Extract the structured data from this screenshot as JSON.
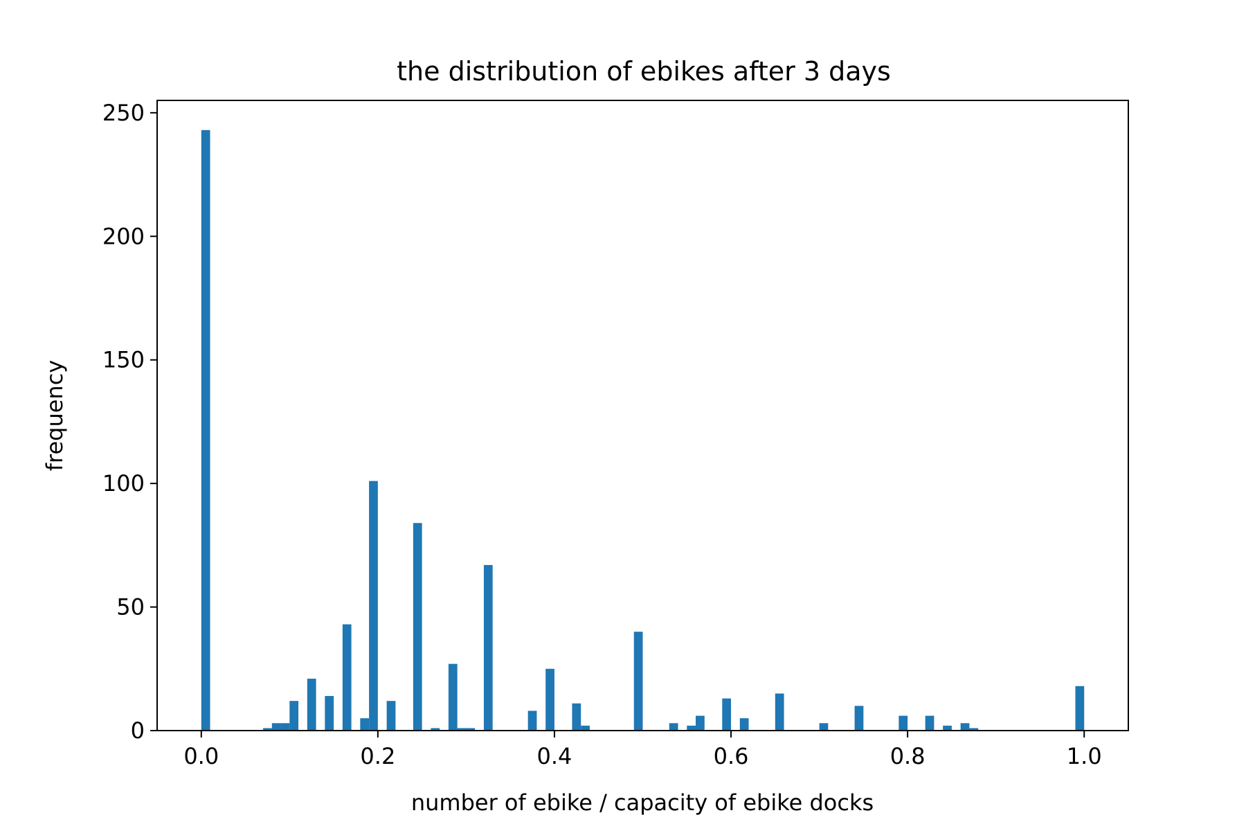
{
  "chart_data": {
    "type": "bar",
    "title": "the distribution of ebikes after 3 days",
    "xlabel": "number of ebike / capacity of ebike docks",
    "ylabel": "frequency",
    "xlim": [
      -0.05,
      1.05
    ],
    "ylim": [
      0,
      255
    ],
    "xticks": [
      {
        "value": 0.0,
        "label": "0.0"
      },
      {
        "value": 0.2,
        "label": "0.2"
      },
      {
        "value": 0.4,
        "label": "0.4"
      },
      {
        "value": 0.6,
        "label": "0.6"
      },
      {
        "value": 0.8,
        "label": "0.8"
      },
      {
        "value": 1.0,
        "label": "1.0"
      }
    ],
    "yticks": [
      {
        "value": 0,
        "label": "0"
      },
      {
        "value": 50,
        "label": "50"
      },
      {
        "value": 100,
        "label": "100"
      },
      {
        "value": 150,
        "label": "150"
      },
      {
        "value": 200,
        "label": "200"
      },
      {
        "value": 250,
        "label": "250"
      }
    ],
    "bin_width": 0.01,
    "bars": [
      {
        "x": 0.0,
        "y": 243
      },
      {
        "x": 0.07,
        "y": 1
      },
      {
        "x": 0.08,
        "y": 3
      },
      {
        "x": 0.09,
        "y": 3
      },
      {
        "x": 0.1,
        "y": 12
      },
      {
        "x": 0.12,
        "y": 21
      },
      {
        "x": 0.14,
        "y": 14
      },
      {
        "x": 0.16,
        "y": 43
      },
      {
        "x": 0.18,
        "y": 5
      },
      {
        "x": 0.19,
        "y": 101
      },
      {
        "x": 0.21,
        "y": 12
      },
      {
        "x": 0.24,
        "y": 84
      },
      {
        "x": 0.26,
        "y": 1
      },
      {
        "x": 0.28,
        "y": 27
      },
      {
        "x": 0.29,
        "y": 1
      },
      {
        "x": 0.3,
        "y": 1
      },
      {
        "x": 0.32,
        "y": 67
      },
      {
        "x": 0.37,
        "y": 8
      },
      {
        "x": 0.39,
        "y": 25
      },
      {
        "x": 0.42,
        "y": 11
      },
      {
        "x": 0.43,
        "y": 2
      },
      {
        "x": 0.49,
        "y": 40
      },
      {
        "x": 0.53,
        "y": 3
      },
      {
        "x": 0.55,
        "y": 2
      },
      {
        "x": 0.56,
        "y": 6
      },
      {
        "x": 0.59,
        "y": 13
      },
      {
        "x": 0.61,
        "y": 5
      },
      {
        "x": 0.65,
        "y": 15
      },
      {
        "x": 0.7,
        "y": 3
      },
      {
        "x": 0.74,
        "y": 10
      },
      {
        "x": 0.79,
        "y": 6
      },
      {
        "x": 0.82,
        "y": 6
      },
      {
        "x": 0.84,
        "y": 2
      },
      {
        "x": 0.86,
        "y": 3
      },
      {
        "x": 0.87,
        "y": 1
      },
      {
        "x": 0.99,
        "y": 18
      }
    ],
    "bar_color": "#1f77b4",
    "grid": false,
    "legend": null
  }
}
